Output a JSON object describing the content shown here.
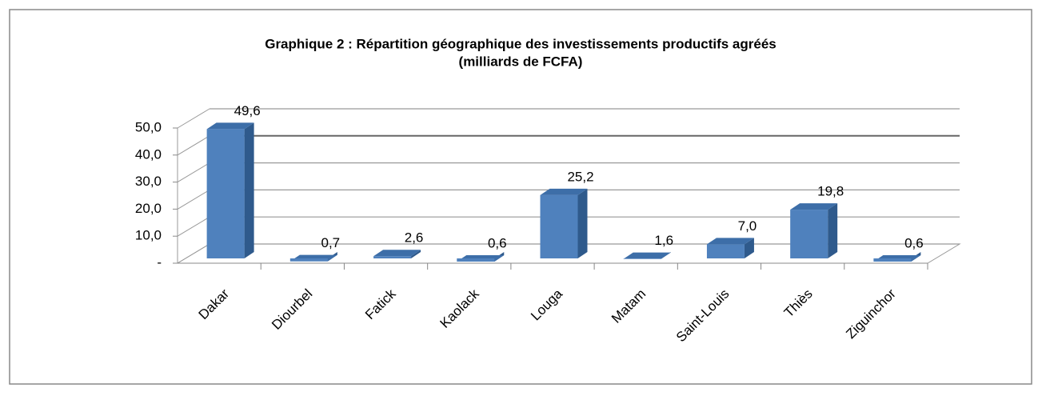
{
  "chart_data": {
    "type": "bar3d",
    "title": [
      "Graphique 2 : Répartition géographique des investissements productifs agréés",
      "(milliards de FCFA)"
    ],
    "categories": [
      "Dakar",
      "Diourbel",
      "Fatick",
      "Kaolack",
      "Louga",
      "Matam",
      "Saint-Louis",
      "Thiès",
      "Ziguinchor"
    ],
    "values": [
      49.6,
      0.7,
      2.6,
      0.6,
      25.2,
      1.6,
      7.0,
      19.8,
      0.6
    ],
    "value_labels": [
      "49,6",
      "0,7",
      "2,6",
      "0,6",
      "25,2",
      "1,6",
      "7,0",
      "19,8",
      "0,6"
    ],
    "color": "#4f81bd",
    "ylim": [
      0,
      50
    ],
    "yticks": [
      {
        "value": 0,
        "label": "-"
      },
      {
        "value": 10,
        "label": "10,0"
      },
      {
        "value": 20,
        "label": "20,0"
      },
      {
        "value": 30,
        "label": "30,0"
      },
      {
        "value": 40,
        "label": "40,0"
      },
      {
        "value": 50,
        "label": "50,0"
      }
    ],
    "grid": true
  }
}
